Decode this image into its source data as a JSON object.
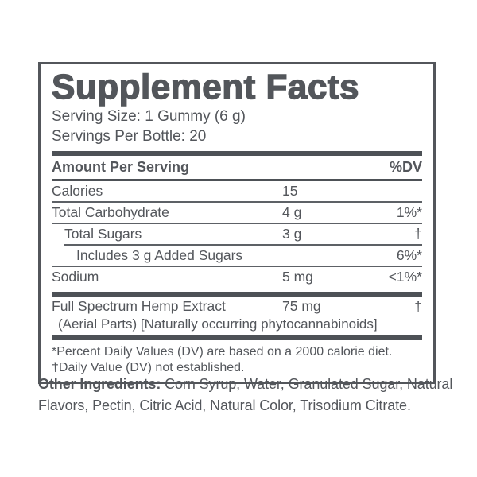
{
  "colors": {
    "ink": "#53565b",
    "bar": "#4d5156",
    "hairline": "#5d6166",
    "background": "#ffffff"
  },
  "panel": {
    "title": "Supplement Facts",
    "serving_size": "Serving Size: 1 Gummy (6 g)",
    "servings_per_bottle": "Servings Per Bottle: 20",
    "header": {
      "amount_label": "Amount Per Serving",
      "dv_label": "%DV"
    },
    "rows": [
      {
        "name": "Calories",
        "amount": "15",
        "dv": ""
      },
      {
        "name": "Total Carbohydrate",
        "amount": "4 g",
        "dv": "1%*"
      },
      {
        "name": "Total Sugars",
        "amount": "3 g",
        "dv": "†"
      },
      {
        "name": "Includes 3 g Added Sugars",
        "amount": "",
        "dv": "6%*"
      },
      {
        "name": "Sodium",
        "amount": "5 mg",
        "dv": "<1%*"
      }
    ],
    "extract": {
      "name": "Full Spectrum Hemp Extract",
      "amount": "75 mg",
      "dv": "†",
      "detail": "(Aerial Parts) [Naturally occurring phytocannabinoids]"
    },
    "footnotes": {
      "percent_dv": "*Percent Daily Values (DV) are based on a 2000 calorie diet.",
      "daily_value": "†Daily Value (DV) not established."
    }
  },
  "other_ingredients": {
    "label": "Other Ingredients:",
    "list": "Corn Syrup, Water, Granulated Sugar, Natural Flavors, Pectin, Citric Acid, Natural Color, Trisodium Citrate."
  }
}
